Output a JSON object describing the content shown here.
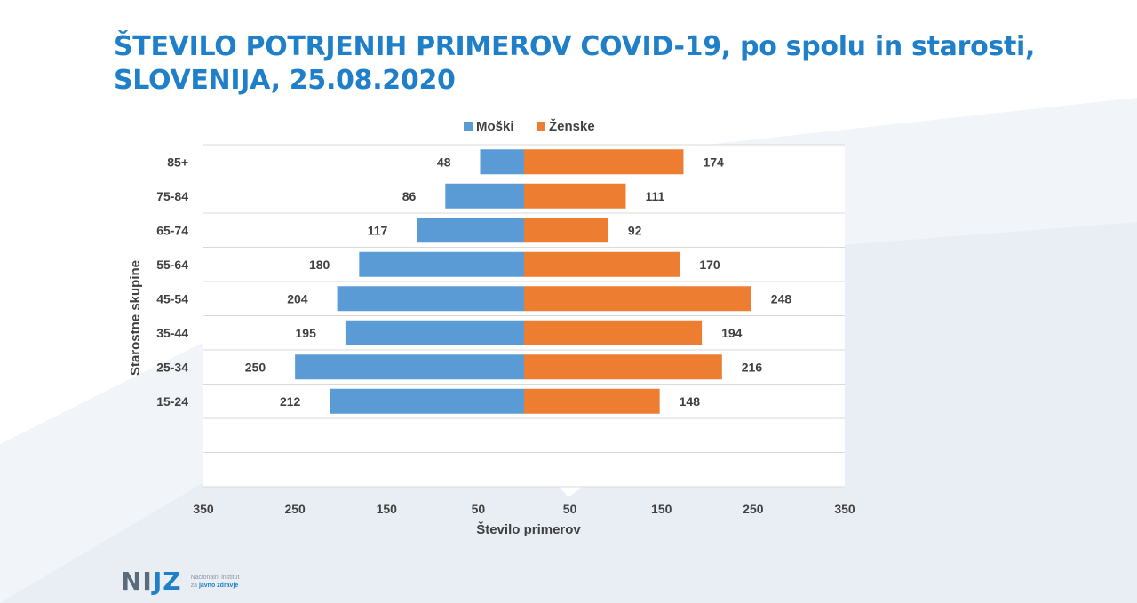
{
  "title": {
    "line1": "ŠTEVILO POTRJENIH PRIMEROV COVID-19, po spolu in starosti,",
    "line2": "SLOVENIJA, 25.08.2020"
  },
  "logo": {
    "mark_left": "NI",
    "mark_accent": "JZ",
    "sub_line1": "Nacionalni inštitut",
    "sub_line2_prefix": "za ",
    "sub_line2_strong": "javno zdravje"
  },
  "colors": {
    "men": "#5b9bd5",
    "women": "#ed7d31",
    "title": "#1f7fc8"
  },
  "chart_data": {
    "type": "bar",
    "orientation": "horizontal-population-pyramid",
    "xlabel": "Število primerov",
    "ylabel": "Starostne skupine",
    "xlim": [
      -350,
      350
    ],
    "x_tick_values": [
      -350,
      -250,
      -150,
      -50,
      50,
      150,
      250,
      350
    ],
    "x_tick_labels": [
      "350",
      "250",
      "150",
      "50",
      "50",
      "150",
      "250",
      "350"
    ],
    "categories": [
      "85+",
      "75-84",
      "65-74",
      "55-64",
      "45-54",
      "35-44",
      "25-34",
      "15-24",
      "",
      ""
    ],
    "series": [
      {
        "name": "Moški",
        "color": "#5b9bd5",
        "side": "left",
        "values": [
          48,
          86,
          117,
          180,
          204,
          195,
          250,
          212,
          null,
          null
        ]
      },
      {
        "name": "Ženske",
        "color": "#ed7d31",
        "side": "right",
        "values": [
          174,
          111,
          92,
          170,
          248,
          194,
          216,
          148,
          null,
          null
        ]
      }
    ],
    "legend_position": "top-center",
    "grid": "horizontal"
  }
}
